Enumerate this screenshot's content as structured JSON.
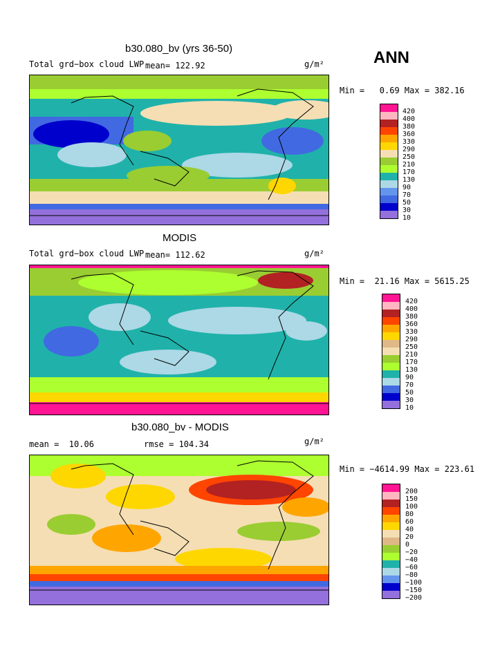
{
  "season": "ANN",
  "panels": [
    {
      "id": "model",
      "title": "b30.080_bv (yrs 36-50)",
      "left_label": "Total grd−box cloud LWP",
      "mean_label": "mean= 122.92",
      "units": "g/m²",
      "minmax": "Min =   0.69 Max = 382.16"
    },
    {
      "id": "obs",
      "title": "MODIS",
      "left_label": "Total grd−box cloud LWP",
      "mean_label": "mean= 112.62",
      "units": "g/m²",
      "minmax": "Min =  21.16 Max = 5615.25"
    },
    {
      "id": "diff",
      "title": "b30.080_bv - MODIS",
      "left_label": "mean =  10.06",
      "mean_label": "rmse = 104.34",
      "units": "g/m²",
      "minmax": "Min = −4614.99 Max = 223.61"
    }
  ],
  "chart_data": [
    {
      "type": "heatmap",
      "title": "b30.080_bv (yrs 36-50)",
      "variable": "Total grd−box cloud LWP",
      "units": "g/m²",
      "mean": 122.92,
      "min": 0.69,
      "max": 382.16,
      "colorbar_levels": [
        "420",
        "400",
        "380",
        "360",
        "330",
        "290",
        "250",
        "210",
        "170",
        "130",
        "90",
        "70",
        "50",
        "30",
        "10"
      ],
      "colorbar_colors": [
        "#ff1493",
        "#ffb6c1",
        "#b22222",
        "#ff4500",
        "#ffa500",
        "#ffd700",
        "#f5deb3",
        "#9acd32",
        "#adff2f",
        "#20b2aa",
        "#add8e6",
        "#6495ed",
        "#4169e1",
        "#0000cd",
        "#9370db"
      ]
    },
    {
      "type": "heatmap",
      "title": "MODIS",
      "variable": "Total grd−box cloud LWP",
      "units": "g/m²",
      "mean": 112.62,
      "min": 21.16,
      "max": 5615.25,
      "colorbar_levels": [
        "420",
        "400",
        "380",
        "360",
        "330",
        "290",
        "250",
        "210",
        "170",
        "130",
        "90",
        "70",
        "50",
        "30",
        "10"
      ],
      "colorbar_colors": [
        "#ff1493",
        "#ffb6c1",
        "#b22222",
        "#ff4500",
        "#ffa500",
        "#ffd700",
        "#deb887",
        "#f5deb3",
        "#9acd32",
        "#adff2f",
        "#20b2aa",
        "#add8e6",
        "#4169e1",
        "#0000cd",
        "#9370db"
      ]
    },
    {
      "type": "heatmap",
      "title": "b30.080_bv - MODIS",
      "units": "g/m²",
      "mean": 10.06,
      "rmse": 104.34,
      "min": -4614.99,
      "max": 223.61,
      "colorbar_levels": [
        "200",
        "150",
        "100",
        "80",
        "60",
        "40",
        "20",
        "0",
        "−20",
        "−40",
        "−60",
        "−80",
        "−100",
        "−150",
        "−200"
      ],
      "colorbar_colors": [
        "#ff1493",
        "#ffb6c1",
        "#b22222",
        "#ff4500",
        "#ffa500",
        "#ffd700",
        "#f5deb3",
        "#deb887",
        "#9acd32",
        "#adff2f",
        "#20b2aa",
        "#add8e6",
        "#6495ed",
        "#0000cd",
        "#9370db"
      ]
    }
  ]
}
